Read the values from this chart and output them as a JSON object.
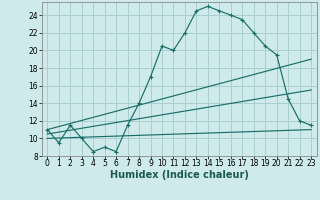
{
  "xlabel": "Humidex (Indice chaleur)",
  "bg_color": "#ceeaea",
  "grid_color": "#aacfcf",
  "line_color": "#1a6e6a",
  "xlim": [
    -0.5,
    23.5
  ],
  "ylim": [
    8,
    25.5
  ],
  "xticks": [
    0,
    1,
    2,
    3,
    4,
    5,
    6,
    7,
    8,
    9,
    10,
    11,
    12,
    13,
    14,
    15,
    16,
    17,
    18,
    19,
    20,
    21,
    22,
    23
  ],
  "yticks": [
    8,
    10,
    12,
    14,
    16,
    18,
    20,
    22,
    24
  ],
  "main_x": [
    0,
    1,
    2,
    3,
    4,
    5,
    6,
    7,
    8,
    9,
    10,
    11,
    12,
    13,
    14,
    15,
    16,
    17,
    18,
    19,
    20,
    21,
    22,
    23
  ],
  "main_y": [
    11,
    9.5,
    11.5,
    10,
    8.5,
    9,
    8.5,
    11.5,
    14,
    17,
    20.5,
    20,
    22,
    24.5,
    25,
    24.5,
    24,
    23.5,
    22,
    20.5,
    19.5,
    14.5,
    12,
    11.5
  ],
  "line2_x": [
    0,
    23
  ],
  "line2_y": [
    11,
    19
  ],
  "line3_x": [
    0,
    23
  ],
  "line3_y": [
    10.5,
    15.5
  ],
  "line4_x": [
    0,
    23
  ],
  "line4_y": [
    10,
    11
  ],
  "xlabel_color": "#1a5a50",
  "xlabel_fontsize": 7,
  "tick_fontsize": 5.5,
  "linewidth": 0.85
}
